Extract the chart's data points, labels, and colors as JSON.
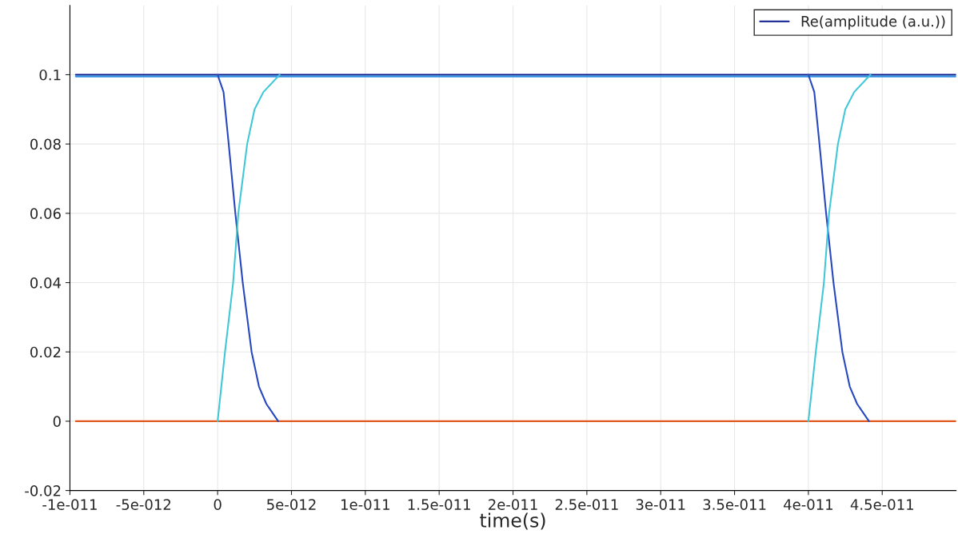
{
  "chart_data": {
    "type": "line",
    "xlabel": "time(s)",
    "series": [
      {
        "name": "Re(amplitude (a.u.))",
        "color": "#0a1a8c",
        "x": [
          -9.6e-12,
          5e-11
        ],
        "values": [
          0.1,
          0.1
        ]
      },
      {
        "color": "#2f8fe0",
        "x": [
          -9.6e-12,
          5e-11
        ],
        "values": [
          0.0995,
          0.0995
        ]
      },
      {
        "color": "#e05a20",
        "x": [
          -9.6e-12,
          5e-11
        ],
        "values": [
          0,
          0
        ]
      },
      {
        "color": "#2848c0",
        "x": [
          0,
          4e-13,
          7.5e-13,
          1.2e-12,
          1.7e-12,
          2.3e-12,
          2.8e-12,
          3.3e-12,
          4.1e-12
        ],
        "values": [
          0.1,
          0.095,
          0.08,
          0.06,
          0.04,
          0.02,
          0.01,
          0.005,
          0
        ]
      },
      {
        "color": "#40c8d8",
        "x": [
          0,
          5e-13,
          1.05e-12,
          1.4e-12,
          2e-12,
          2.5e-12,
          3.1e-12,
          4.2e-12
        ],
        "values": [
          0,
          0.02,
          0.04,
          0.06,
          0.08,
          0.09,
          0.095,
          0.1
        ]
      },
      {
        "color": "#2848c0",
        "x": [
          4e-11,
          4.04e-11,
          4.075e-11,
          4.12e-11,
          4.17e-11,
          4.23e-11,
          4.28e-11,
          4.33e-11,
          4.41e-11
        ],
        "values": [
          0.1,
          0.095,
          0.08,
          0.06,
          0.04,
          0.02,
          0.01,
          0.005,
          0
        ]
      },
      {
        "color": "#40c8d8",
        "x": [
          4e-11,
          4.05e-11,
          4.105e-11,
          4.14e-11,
          4.2e-11,
          4.25e-11,
          4.31e-11,
          4.42e-11
        ],
        "values": [
          0,
          0.02,
          0.04,
          0.06,
          0.08,
          0.09,
          0.095,
          0.1
        ]
      }
    ],
    "xlim": [
      -1e-11,
      5e-11
    ],
    "xticks": [
      {
        "value": -1e-11,
        "label": "-1e-011"
      },
      {
        "value": -5e-12,
        "label": "-5e-012"
      },
      0,
      {
        "value": 5e-12,
        "label": "5e-012"
      },
      {
        "value": 1e-11,
        "label": "1e-011"
      },
      {
        "value": 1.5e-11,
        "label": "1.5e-011"
      },
      {
        "value": 2e-11,
        "label": "2e-011"
      },
      {
        "value": 2.5e-11,
        "label": "2.5e-011"
      },
      {
        "value": 3e-11,
        "label": "3e-011"
      },
      {
        "value": 3.5e-11,
        "label": "3.5e-011"
      },
      {
        "value": 4e-11,
        "label": "4e-011"
      },
      {
        "value": 4.5e-11,
        "label": "4.5e-011"
      }
    ],
    "ylim": [
      -0.02,
      0.12
    ],
    "yticks": [
      -0.02,
      0,
      0.02,
      0.04,
      0.06,
      0.08,
      0.1
    ],
    "grid": true,
    "legend": "top right",
    "line_style": "solid",
    "marker": "none"
  }
}
